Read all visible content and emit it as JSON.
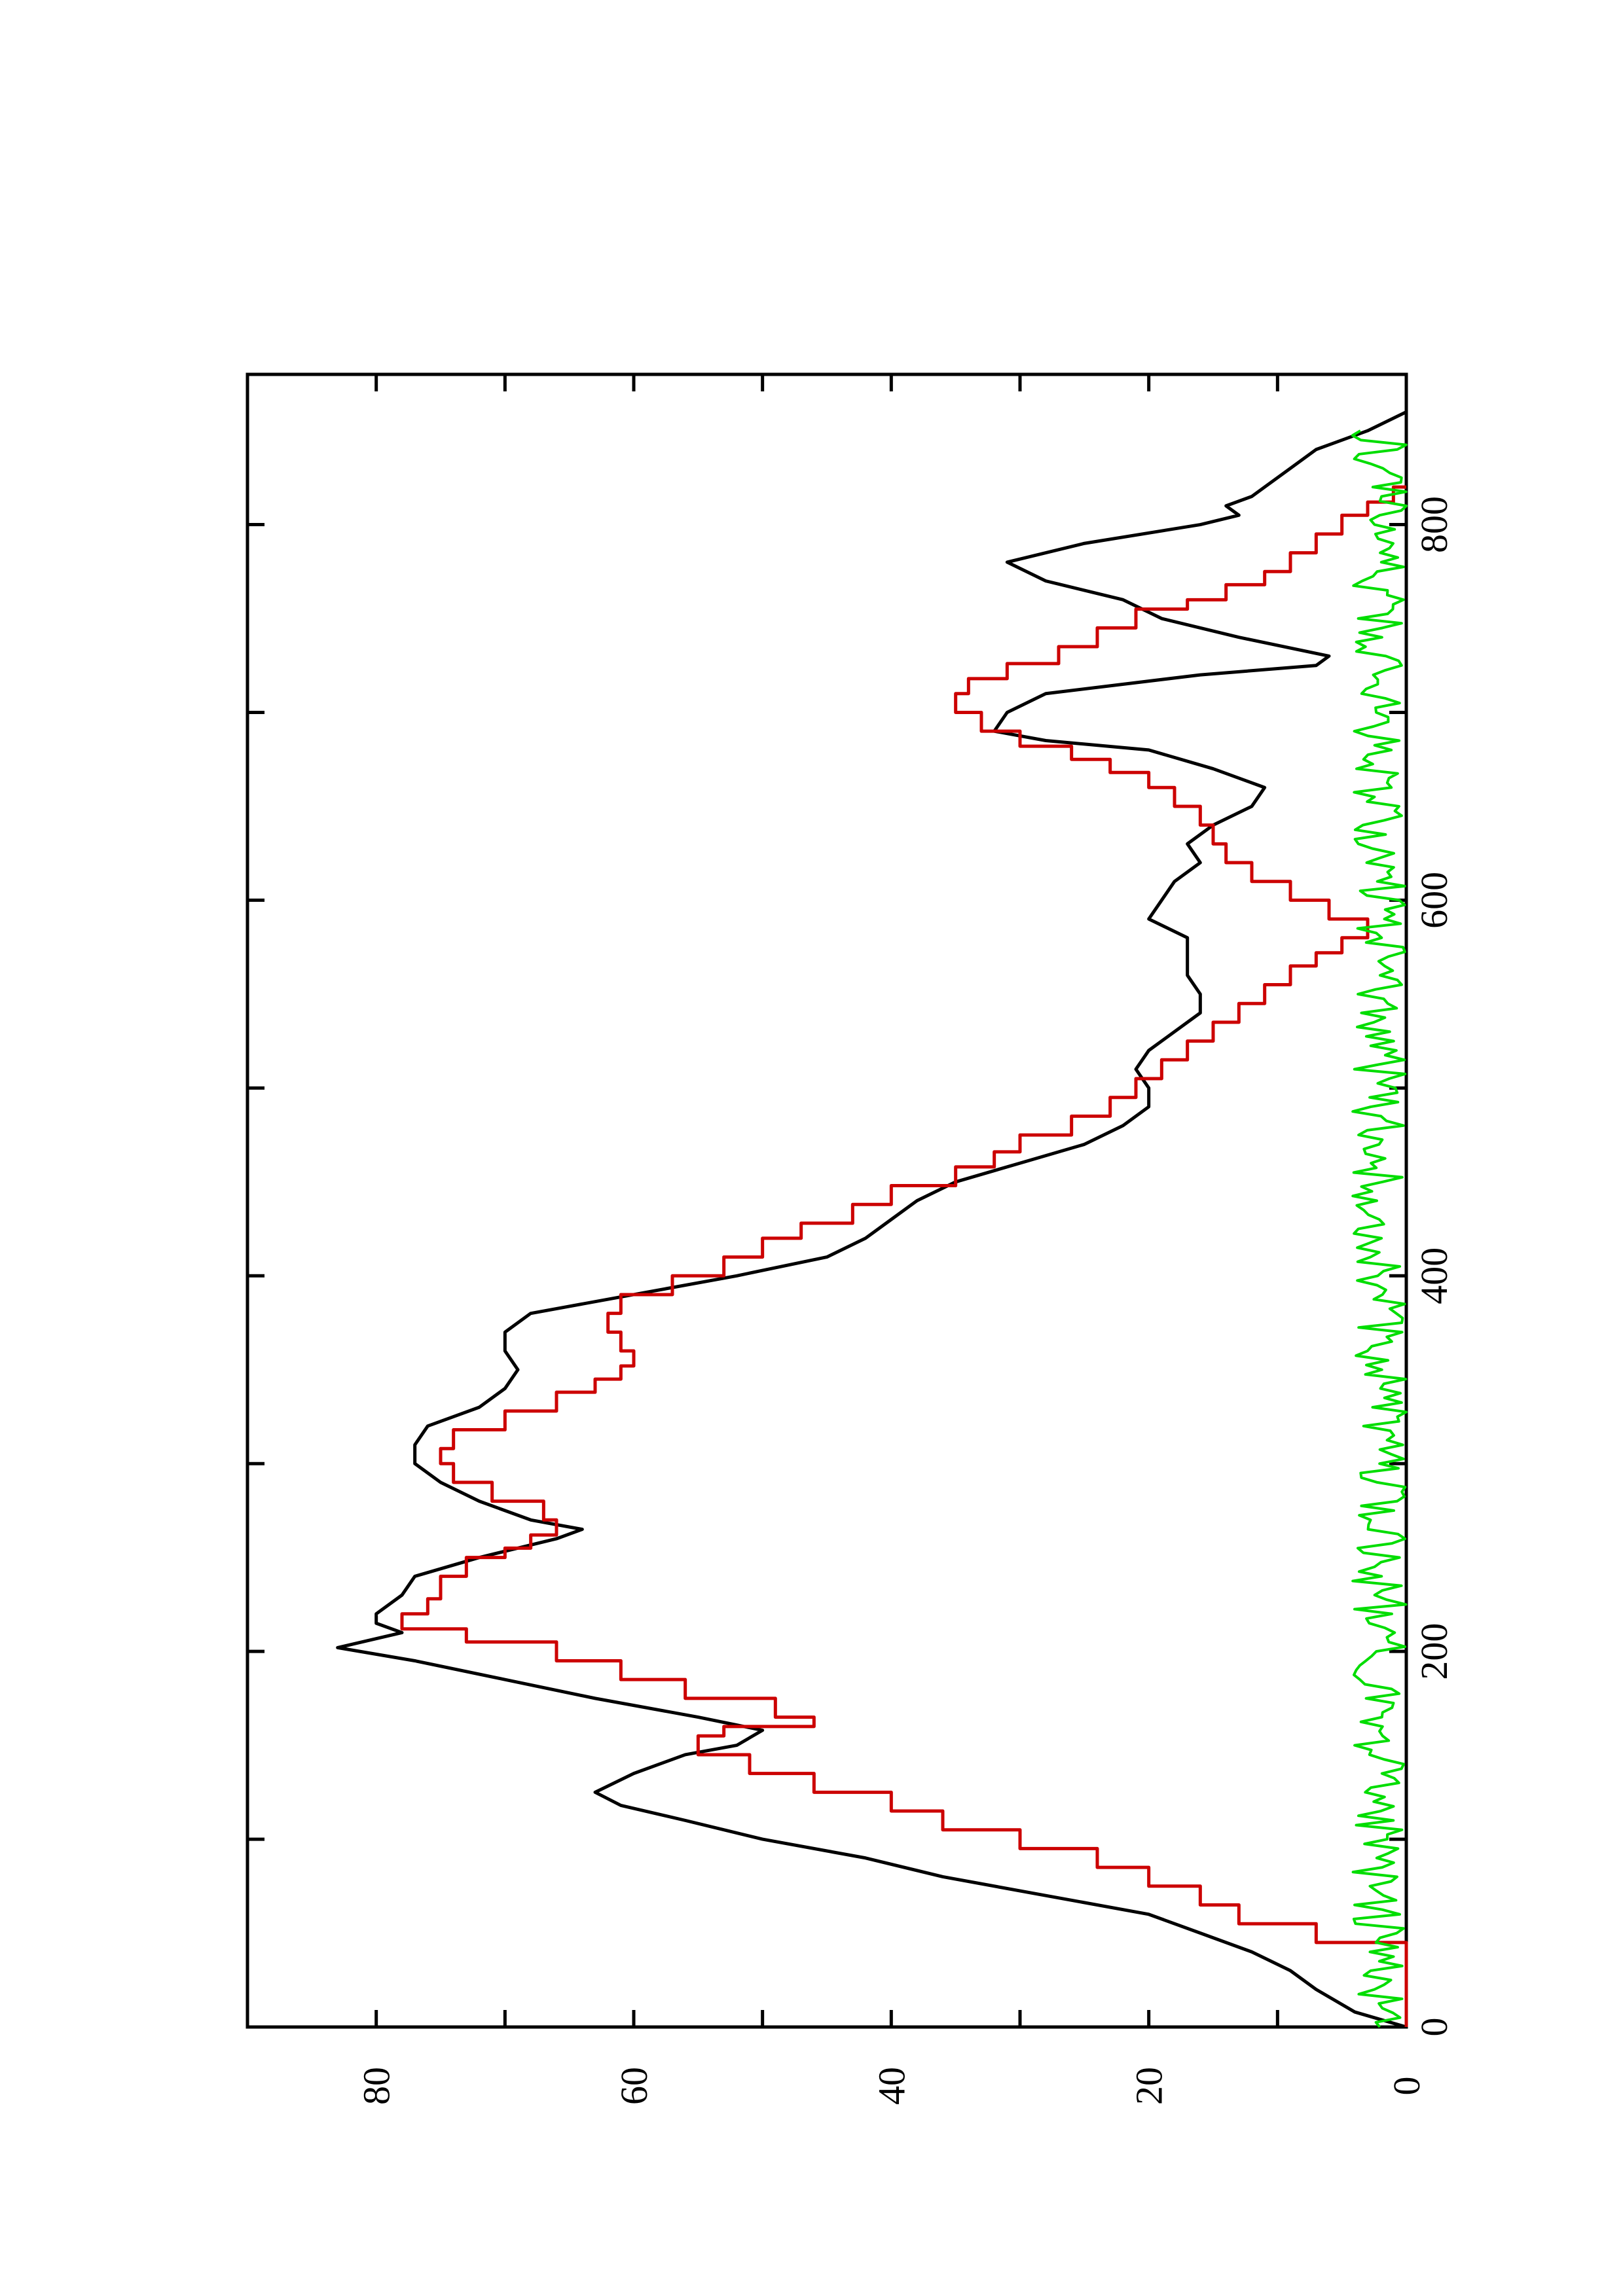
{
  "chart_data": {
    "type": "line",
    "orientation": "rotated-90-counterclockwise",
    "title": "",
    "xlabel": "",
    "ylabel": "",
    "xlim": [
      0,
      880
    ],
    "ylim": [
      0,
      90
    ],
    "x_ticks": [
      0,
      200,
      400,
      600,
      800
    ],
    "x_minor_ticks": [
      100,
      300,
      500,
      700
    ],
    "y_ticks": [
      0,
      20,
      40,
      60,
      80
    ],
    "y_minor_ticks": [
      10,
      30,
      50,
      70
    ],
    "grid": false,
    "legend": "none",
    "series": [
      {
        "color": "#000000",
        "style": "line",
        "points": [
          [
            0,
            0
          ],
          [
            8,
            4
          ],
          [
            20,
            7
          ],
          [
            30,
            9
          ],
          [
            40,
            12
          ],
          [
            50,
            16
          ],
          [
            60,
            20
          ],
          [
            70,
            28
          ],
          [
            80,
            36
          ],
          [
            90,
            42
          ],
          [
            100,
            50
          ],
          [
            110,
            56
          ],
          [
            118,
            61
          ],
          [
            125,
            63
          ],
          [
            135,
            60
          ],
          [
            145,
            56
          ],
          [
            150,
            52
          ],
          [
            158,
            50
          ],
          [
            165,
            55
          ],
          [
            175,
            63
          ],
          [
            185,
            70
          ],
          [
            195,
            77
          ],
          [
            202,
            83
          ],
          [
            210,
            78
          ],
          [
            215,
            80
          ],
          [
            220,
            80
          ],
          [
            230,
            78
          ],
          [
            240,
            77
          ],
          [
            250,
            72
          ],
          [
            255,
            69
          ],
          [
            260,
            66
          ],
          [
            265,
            64
          ],
          [
            270,
            68
          ],
          [
            280,
            72
          ],
          [
            290,
            75
          ],
          [
            300,
            77
          ],
          [
            310,
            77
          ],
          [
            320,
            76
          ],
          [
            330,
            72
          ],
          [
            340,
            70
          ],
          [
            350,
            69
          ],
          [
            360,
            70
          ],
          [
            370,
            70
          ],
          [
            380,
            68
          ],
          [
            390,
            60
          ],
          [
            400,
            52
          ],
          [
            410,
            45
          ],
          [
            420,
            42
          ],
          [
            430,
            40
          ],
          [
            440,
            38
          ],
          [
            450,
            35
          ],
          [
            460,
            30
          ],
          [
            470,
            25
          ],
          [
            480,
            22
          ],
          [
            490,
            20
          ],
          [
            500,
            20
          ],
          [
            510,
            21
          ],
          [
            520,
            20
          ],
          [
            530,
            18
          ],
          [
            540,
            16
          ],
          [
            550,
            16
          ],
          [
            560,
            17
          ],
          [
            570,
            17
          ],
          [
            580,
            17
          ],
          [
            590,
            20
          ],
          [
            600,
            19
          ],
          [
            610,
            18
          ],
          [
            620,
            16
          ],
          [
            630,
            17
          ],
          [
            640,
            15
          ],
          [
            650,
            12
          ],
          [
            660,
            11
          ],
          [
            670,
            15
          ],
          [
            680,
            20
          ],
          [
            685,
            28
          ],
          [
            690,
            32
          ],
          [
            700,
            31
          ],
          [
            710,
            28
          ],
          [
            720,
            16
          ],
          [
            725,
            7
          ],
          [
            730,
            6
          ],
          [
            740,
            13
          ],
          [
            750,
            19
          ],
          [
            760,
            22
          ],
          [
            770,
            28
          ],
          [
            780,
            31
          ],
          [
            790,
            25
          ],
          [
            800,
            16
          ],
          [
            805,
            13
          ],
          [
            810,
            14
          ],
          [
            815,
            12
          ],
          [
            820,
            11
          ],
          [
            830,
            9
          ],
          [
            840,
            7
          ],
          [
            850,
            3
          ],
          [
            860,
            0
          ]
        ]
      },
      {
        "color": "#cc0000",
        "style": "step",
        "points": [
          [
            0,
            0
          ],
          [
            30,
            0
          ],
          [
            36,
            0
          ],
          [
            45,
            7
          ],
          [
            55,
            13
          ],
          [
            65,
            16
          ],
          [
            75,
            20
          ],
          [
            85,
            24
          ],
          [
            95,
            30
          ],
          [
            105,
            36
          ],
          [
            115,
            40
          ],
          [
            125,
            46
          ],
          [
            135,
            51
          ],
          [
            145,
            55
          ],
          [
            155,
            53
          ],
          [
            160,
            46
          ],
          [
            165,
            49
          ],
          [
            175,
            56
          ],
          [
            185,
            61
          ],
          [
            195,
            66
          ],
          [
            205,
            73
          ],
          [
            212,
            78
          ],
          [
            220,
            76
          ],
          [
            228,
            75
          ],
          [
            240,
            73
          ],
          [
            250,
            70
          ],
          [
            255,
            68
          ],
          [
            262,
            66
          ],
          [
            270,
            67
          ],
          [
            280,
            71
          ],
          [
            290,
            74
          ],
          [
            300,
            75
          ],
          [
            308,
            74
          ],
          [
            318,
            70
          ],
          [
            328,
            66
          ],
          [
            338,
            63
          ],
          [
            345,
            61
          ],
          [
            352,
            60
          ],
          [
            360,
            61
          ],
          [
            370,
            62
          ],
          [
            380,
            61
          ],
          [
            390,
            57
          ],
          [
            400,
            53
          ],
          [
            410,
            50
          ],
          [
            420,
            47
          ],
          [
            428,
            43
          ],
          [
            438,
            40
          ],
          [
            448,
            35
          ],
          [
            458,
            32
          ],
          [
            466,
            30
          ],
          [
            475,
            26
          ],
          [
            485,
            23
          ],
          [
            495,
            21
          ],
          [
            505,
            19
          ],
          [
            515,
            17
          ],
          [
            525,
            15
          ],
          [
            535,
            13
          ],
          [
            545,
            11
          ],
          [
            555,
            9
          ],
          [
            565,
            7
          ],
          [
            572,
            5
          ],
          [
            580,
            3
          ],
          [
            590,
            6
          ],
          [
            600,
            9
          ],
          [
            610,
            12
          ],
          [
            620,
            14
          ],
          [
            630,
            15
          ],
          [
            640,
            16
          ],
          [
            650,
            18
          ],
          [
            660,
            20
          ],
          [
            668,
            23
          ],
          [
            675,
            26
          ],
          [
            682,
            30
          ],
          [
            690,
            33
          ],
          [
            700,
            35
          ],
          [
            710,
            34
          ],
          [
            718,
            31
          ],
          [
            726,
            27
          ],
          [
            735,
            24
          ],
          [
            745,
            21
          ],
          [
            755,
            17
          ],
          [
            760,
            14
          ],
          [
            768,
            11
          ],
          [
            775,
            9
          ],
          [
            785,
            7
          ],
          [
            795,
            5
          ],
          [
            805,
            3
          ],
          [
            812,
            1
          ],
          [
            820,
            0
          ]
        ]
      },
      {
        "color": "#00dd00",
        "style": "noise",
        "points": []
      }
    ]
  }
}
